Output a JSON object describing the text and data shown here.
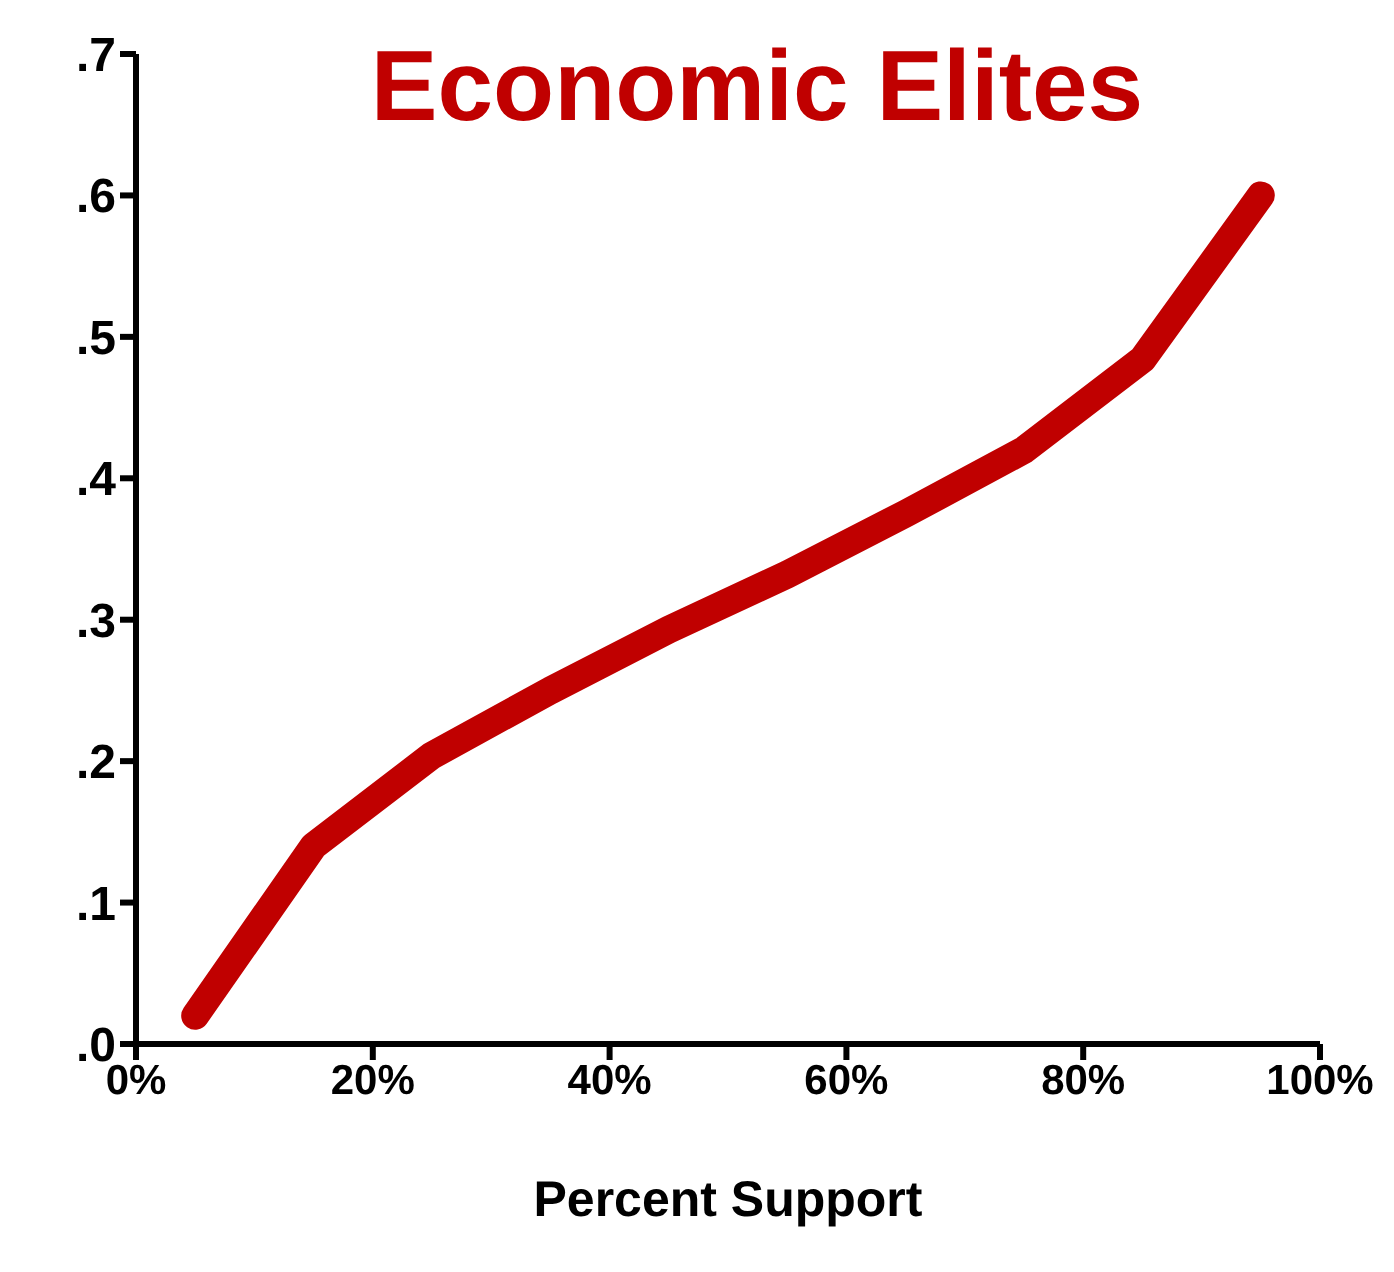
{
  "chart_data": {
    "type": "line",
    "title": "Economic Elites",
    "xlabel": "Percent Support",
    "x": [
      5,
      15,
      25,
      35,
      45,
      55,
      65,
      75,
      85,
      95
    ],
    "series": [
      {
        "color": "#c00000",
        "values": [
          0.02,
          0.14,
          0.204,
          0.25,
          0.293,
          0.332,
          0.375,
          0.42,
          0.484,
          0.6
        ]
      }
    ],
    "xlim": [
      0,
      100
    ],
    "xticks": [
      {
        "value": 0,
        "label": "0%"
      },
      {
        "value": 20,
        "label": "20%"
      },
      {
        "value": 40,
        "label": "40%"
      },
      {
        "value": 60,
        "label": "60%"
      },
      {
        "value": 80,
        "label": "80%"
      },
      {
        "value": 100,
        "label": "100%"
      }
    ],
    "ylim": [
      0,
      0.7
    ],
    "yticks": [
      {
        "value": 0,
        "label": ".0"
      },
      {
        "value": 0.1,
        "label": ".1"
      },
      {
        "value": 0.2,
        "label": ".2"
      },
      {
        "value": 0.3,
        "label": ".3"
      },
      {
        "value": 0.4,
        "label": ".4"
      },
      {
        "value": 0.5,
        "label": ".5"
      },
      {
        "value": 0.6,
        "label": ".6"
      },
      {
        "value": 0.7,
        "label": ".7"
      }
    ],
    "grid": false,
    "legend": false,
    "marker": "none",
    "line_style": "solid"
  }
}
